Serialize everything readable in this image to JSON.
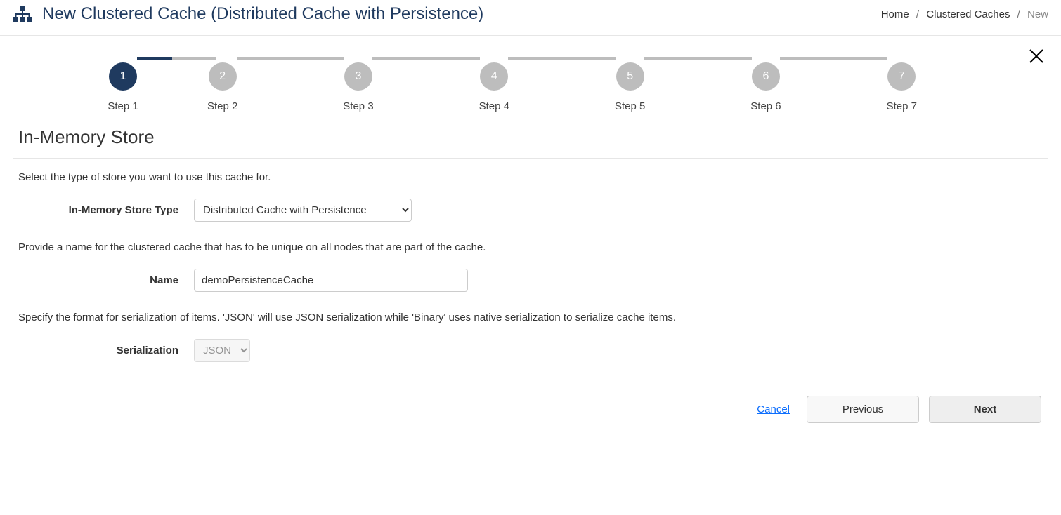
{
  "colors": {
    "primary_dark": "#1f3a5f",
    "step_inactive_bg": "#bdbdbd",
    "border": "#e6e6e6",
    "link": "#0d6efd"
  },
  "header": {
    "title": "New Clustered Cache (Distributed Cache with Persistence)",
    "breadcrumb": {
      "home": "Home",
      "section": "Clustered Caches",
      "current": "New"
    }
  },
  "stepper": {
    "active_index": 0,
    "steps": [
      {
        "num": "1",
        "label": "Step 1"
      },
      {
        "num": "2",
        "label": "Step 2"
      },
      {
        "num": "3",
        "label": "Step 3"
      },
      {
        "num": "4",
        "label": "Step 4"
      },
      {
        "num": "5",
        "label": "Step 5"
      },
      {
        "num": "6",
        "label": "Step 6"
      },
      {
        "num": "7",
        "label": "Step 7"
      }
    ]
  },
  "section": {
    "title": "In-Memory Store"
  },
  "form": {
    "store_type": {
      "desc": "Select the type of store you want to use this cache for.",
      "label": "In-Memory Store Type",
      "value": "Distributed Cache with Persistence"
    },
    "name": {
      "desc": "Provide a name for the clustered cache that has to be unique on all nodes that are part of the cache.",
      "label": "Name",
      "value": "demoPersistenceCache"
    },
    "serialization": {
      "desc": "Specify the format for serialization of items. 'JSON' will use JSON serialization while 'Binary' uses native serialization to serialize cache items.",
      "label": "Serialization",
      "value": "JSON"
    }
  },
  "footer": {
    "cancel": "Cancel",
    "previous": "Previous",
    "next": "Next"
  }
}
